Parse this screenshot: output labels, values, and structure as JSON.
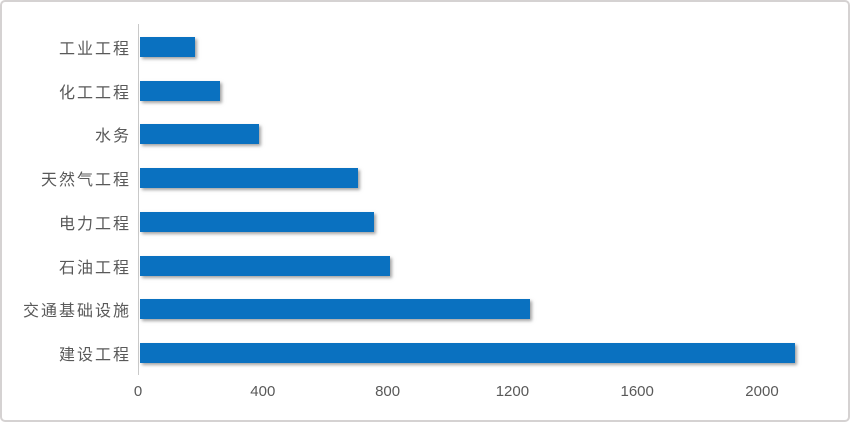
{
  "chart_data": {
    "type": "bar",
    "orientation": "horizontal",
    "title": "",
    "xlabel": "",
    "ylabel": "",
    "categories": [
      "工业工程",
      "化工工程",
      "水务",
      "天然气工程",
      "电力工程",
      "石油工程",
      "交通基础设施",
      "建设工程"
    ],
    "values": [
      175,
      255,
      380,
      700,
      750,
      800,
      1250,
      2100
    ],
    "x_ticks": [
      0,
      400,
      800,
      1200,
      1600,
      2000
    ],
    "xlim": [
      0,
      2250
    ],
    "grid": false,
    "legend": false,
    "bar_color": "#0a71c0",
    "label_color": "#595959",
    "axis_line_color": "#c9c9c9",
    "frame_border_color": "#d5d2d2",
    "background_color": "#ffffff"
  }
}
